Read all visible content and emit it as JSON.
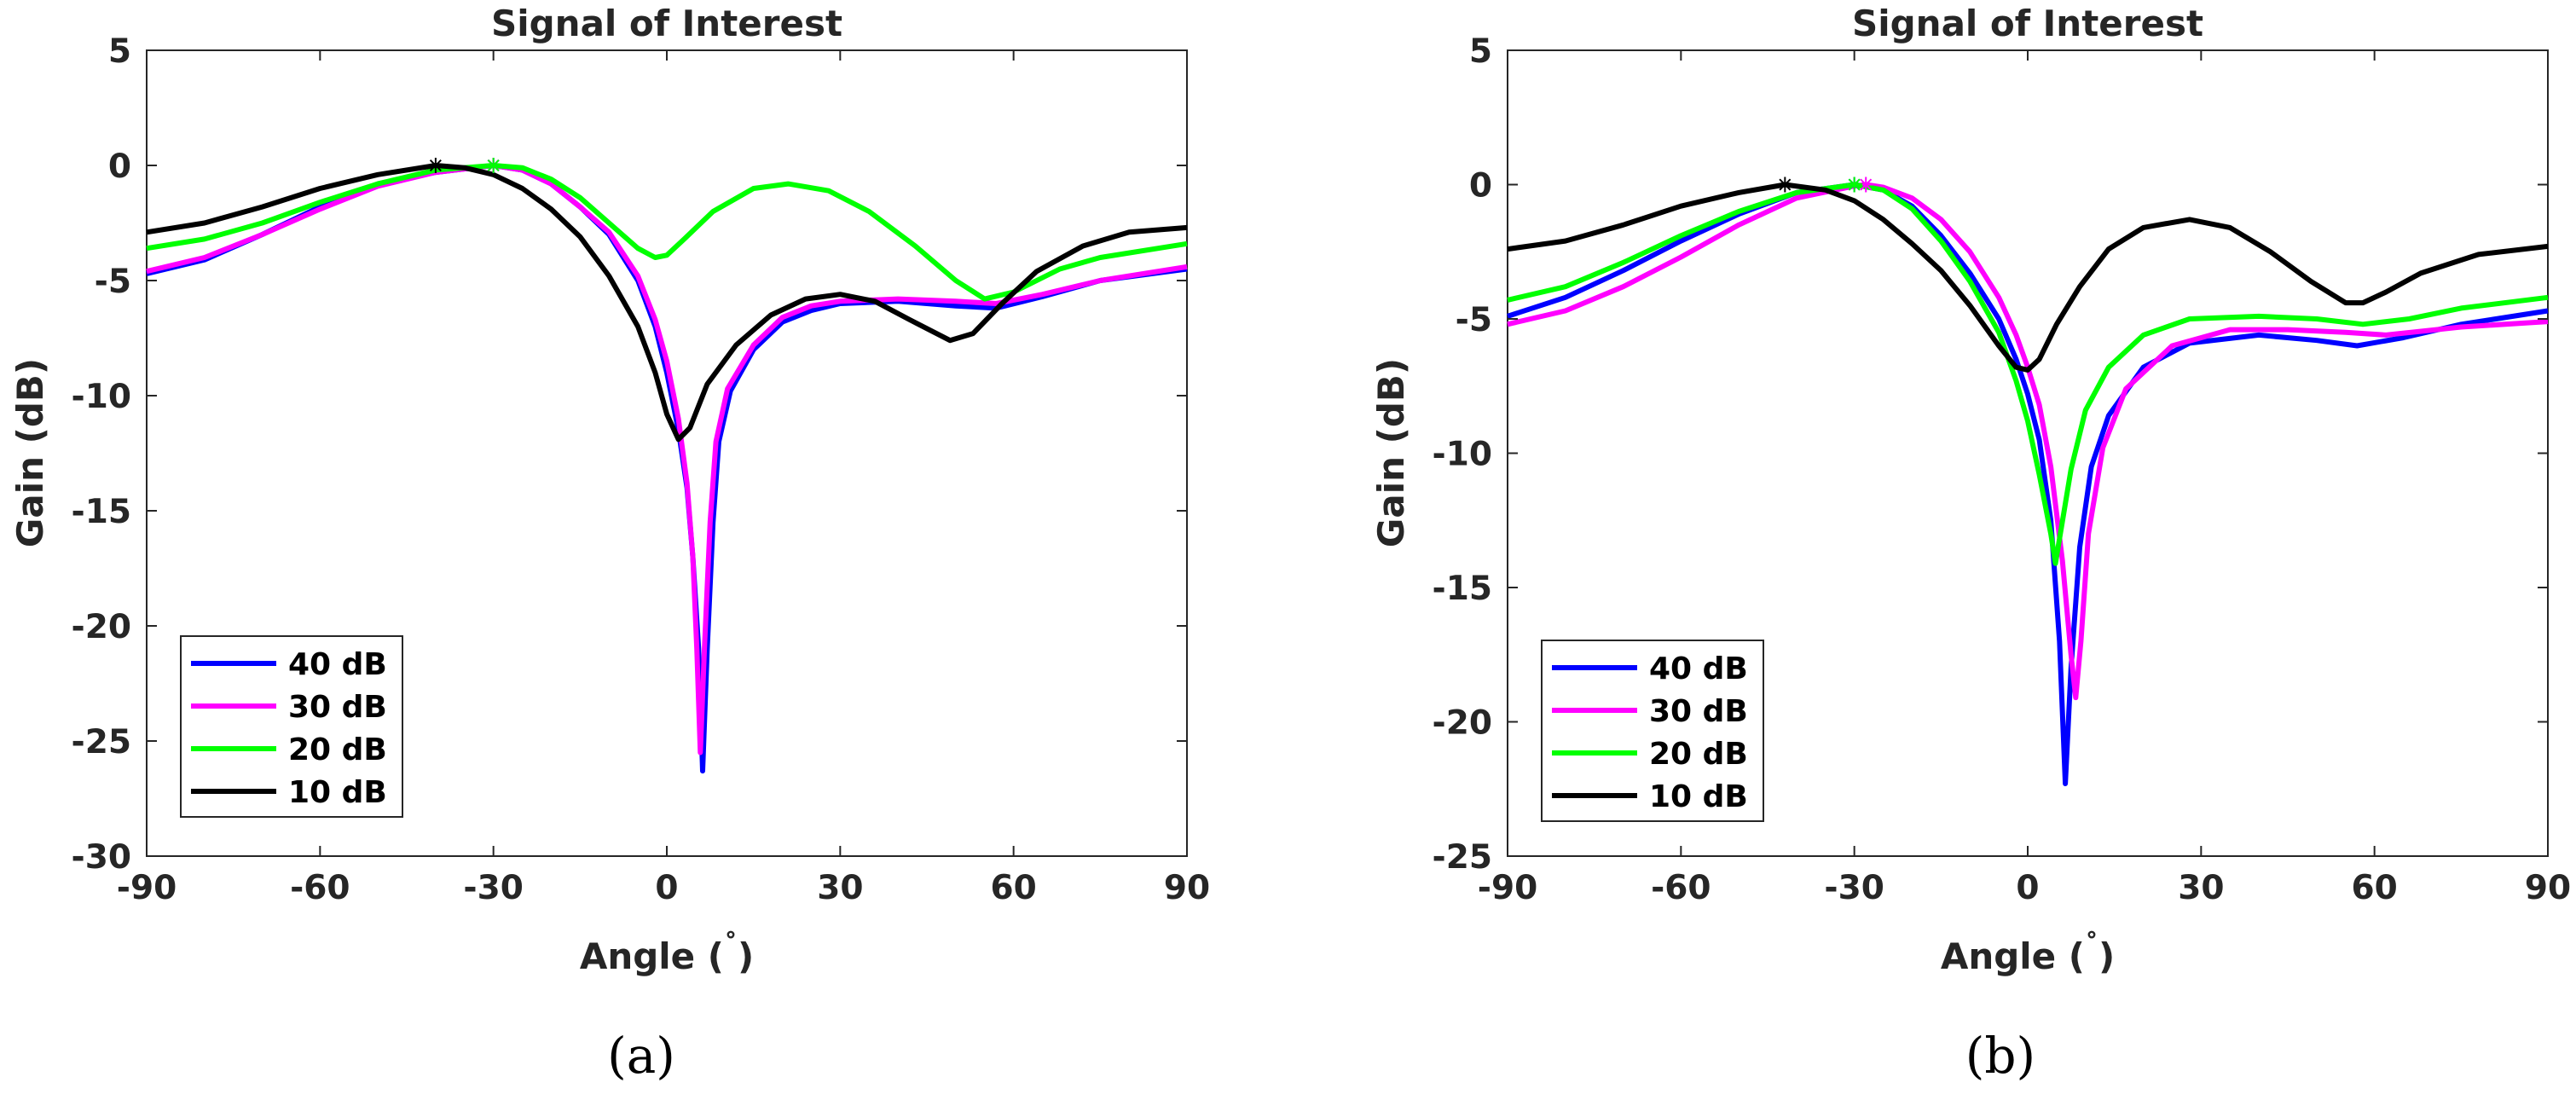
{
  "chart_data": [
    {
      "type": "line",
      "panel_label": "(a)",
      "title": "Signal of Interest",
      "xlabel_prefix": "Angle (",
      "xlabel_degree": "˚",
      "xlabel_suffix": ")",
      "ylabel": "Gain (dB)",
      "xlim": [
        -90,
        90
      ],
      "ylim": [
        -30,
        5
      ],
      "xticks": [
        -90,
        -60,
        -30,
        0,
        30,
        60,
        90
      ],
      "yticks": [
        5,
        0,
        -5,
        -10,
        -15,
        -20,
        -25,
        -30
      ],
      "legend_position": "bottom-left",
      "series": [
        {
          "name": "40 dB",
          "color": "#0000ff",
          "marker_x": -30,
          "points": [
            [
              -90,
              -4.7
            ],
            [
              -80,
              -4.1
            ],
            [
              -70,
              -3.0
            ],
            [
              -60,
              -1.8
            ],
            [
              -50,
              -0.8
            ],
            [
              -40,
              -0.3
            ],
            [
              -30,
              0
            ],
            [
              -25,
              -0.2
            ],
            [
              -20,
              -0.8
            ],
            [
              -15,
              -1.8
            ],
            [
              -10,
              -3.0
            ],
            [
              -5,
              -5.0
            ],
            [
              -2,
              -7.0
            ],
            [
              0,
              -9.0
            ],
            [
              2,
              -11.5
            ],
            [
              3.5,
              -14
            ],
            [
              4.5,
              -17
            ],
            [
              5.5,
              -21
            ],
            [
              6.2,
              -26.3
            ],
            [
              7,
              -21
            ],
            [
              8,
              -15.5
            ],
            [
              9,
              -12
            ],
            [
              11,
              -9.8
            ],
            [
              15,
              -8
            ],
            [
              20,
              -6.8
            ],
            [
              25,
              -6.3
            ],
            [
              30,
              -6.0
            ],
            [
              40,
              -5.9
            ],
            [
              50,
              -6.1
            ],
            [
              57,
              -6.2
            ],
            [
              65,
              -5.7
            ],
            [
              75,
              -5.0
            ],
            [
              90,
              -4.5
            ]
          ]
        },
        {
          "name": "30 dB",
          "color": "#ff00ff",
          "marker_x": -30,
          "points": [
            [
              -90,
              -4.6
            ],
            [
              -80,
              -4.0
            ],
            [
              -70,
              -3.0
            ],
            [
              -60,
              -1.9
            ],
            [
              -50,
              -0.9
            ],
            [
              -40,
              -0.3
            ],
            [
              -30,
              0
            ],
            [
              -25,
              -0.2
            ],
            [
              -20,
              -0.8
            ],
            [
              -15,
              -1.8
            ],
            [
              -10,
              -2.9
            ],
            [
              -5,
              -4.8
            ],
            [
              -2,
              -6.7
            ],
            [
              0,
              -8.5
            ],
            [
              2,
              -11
            ],
            [
              3.5,
              -13.8
            ],
            [
              4.5,
              -17
            ],
            [
              5.2,
              -21
            ],
            [
              5.8,
              -25.5
            ],
            [
              6.5,
              -21
            ],
            [
              7.5,
              -15.5
            ],
            [
              8.5,
              -12
            ],
            [
              10.5,
              -9.7
            ],
            [
              15,
              -7.8
            ],
            [
              20,
              -6.6
            ],
            [
              25,
              -6.1
            ],
            [
              30,
              -5.9
            ],
            [
              40,
              -5.8
            ],
            [
              50,
              -5.9
            ],
            [
              57,
              -6.0
            ],
            [
              65,
              -5.6
            ],
            [
              75,
              -5.0
            ],
            [
              90,
              -4.4
            ]
          ]
        },
        {
          "name": "20 dB",
          "color": "#00ff00",
          "marker_x": -30,
          "points": [
            [
              -90,
              -3.6
            ],
            [
              -80,
              -3.2
            ],
            [
              -70,
              -2.5
            ],
            [
              -60,
              -1.6
            ],
            [
              -50,
              -0.8
            ],
            [
              -40,
              -0.2
            ],
            [
              -30,
              0
            ],
            [
              -25,
              -0.1
            ],
            [
              -20,
              -0.6
            ],
            [
              -15,
              -1.4
            ],
            [
              -10,
              -2.5
            ],
            [
              -5,
              -3.6
            ],
            [
              -2,
              -4.0
            ],
            [
              0,
              -3.9
            ],
            [
              3,
              -3.2
            ],
            [
              8,
              -2.0
            ],
            [
              15,
              -1.0
            ],
            [
              21,
              -0.8
            ],
            [
              28,
              -1.1
            ],
            [
              35,
              -2.0
            ],
            [
              43,
              -3.5
            ],
            [
              50,
              -5.0
            ],
            [
              55,
              -5.8
            ],
            [
              60,
              -5.5
            ],
            [
              68,
              -4.5
            ],
            [
              75,
              -4.0
            ],
            [
              90,
              -3.4
            ]
          ]
        },
        {
          "name": "10 dB",
          "color": "#000000",
          "marker_x": -40,
          "points": [
            [
              -90,
              -2.9
            ],
            [
              -80,
              -2.5
            ],
            [
              -70,
              -1.8
            ],
            [
              -60,
              -1.0
            ],
            [
              -50,
              -0.4
            ],
            [
              -40,
              0
            ],
            [
              -35,
              -0.1
            ],
            [
              -30,
              -0.4
            ],
            [
              -25,
              -1.0
            ],
            [
              -20,
              -1.9
            ],
            [
              -15,
              -3.1
            ],
            [
              -10,
              -4.8
            ],
            [
              -5,
              -7.0
            ],
            [
              -2,
              -9.0
            ],
            [
              0,
              -10.8
            ],
            [
              2,
              -11.9
            ],
            [
              4,
              -11.4
            ],
            [
              7,
              -9.5
            ],
            [
              12,
              -7.8
            ],
            [
              18,
              -6.5
            ],
            [
              24,
              -5.8
            ],
            [
              30,
              -5.6
            ],
            [
              36,
              -5.9
            ],
            [
              42,
              -6.7
            ],
            [
              49,
              -7.6
            ],
            [
              53,
              -7.3
            ],
            [
              58,
              -6.0
            ],
            [
              64,
              -4.6
            ],
            [
              72,
              -3.5
            ],
            [
              80,
              -2.9
            ],
            [
              90,
              -2.7
            ]
          ]
        }
      ]
    },
    {
      "type": "line",
      "panel_label": "(b)",
      "title": "Signal of Interest",
      "xlabel_prefix": "Angle (",
      "xlabel_degree": "˚",
      "xlabel_suffix": ")",
      "ylabel": "Gain (dB)",
      "xlim": [
        -90,
        90
      ],
      "ylim": [
        -25,
        5
      ],
      "xticks": [
        -90,
        -60,
        -30,
        0,
        30,
        60,
        90
      ],
      "yticks": [
        5,
        0,
        -5,
        -10,
        -15,
        -20,
        -25
      ],
      "legend_position": "bottom-left",
      "series": [
        {
          "name": "40 dB",
          "color": "#0000ff",
          "marker_x": -30,
          "points": [
            [
              -90,
              -4.9
            ],
            [
              -80,
              -4.2
            ],
            [
              -70,
              -3.2
            ],
            [
              -60,
              -2.1
            ],
            [
              -50,
              -1.1
            ],
            [
              -40,
              -0.3
            ],
            [
              -30,
              0
            ],
            [
              -25,
              -0.2
            ],
            [
              -20,
              -0.8
            ],
            [
              -15,
              -1.9
            ],
            [
              -10,
              -3.3
            ],
            [
              -5,
              -5.0
            ],
            [
              -2,
              -6.5
            ],
            [
              0,
              -7.8
            ],
            [
              2,
              -9.5
            ],
            [
              4,
              -12.5
            ],
            [
              5.5,
              -17
            ],
            [
              6.5,
              -22.3
            ],
            [
              7.5,
              -18
            ],
            [
              9,
              -13.5
            ],
            [
              11,
              -10.5
            ],
            [
              14,
              -8.6
            ],
            [
              20,
              -6.8
            ],
            [
              28,
              -5.9
            ],
            [
              40,
              -5.6
            ],
            [
              50,
              -5.8
            ],
            [
              57,
              -6.0
            ],
            [
              65,
              -5.7
            ],
            [
              75,
              -5.2
            ],
            [
              90,
              -4.7
            ]
          ]
        },
        {
          "name": "30 dB",
          "color": "#ff00ff",
          "marker_x": -28,
          "points": [
            [
              -90,
              -5.2
            ],
            [
              -80,
              -4.7
            ],
            [
              -70,
              -3.8
            ],
            [
              -60,
              -2.7
            ],
            [
              -50,
              -1.5
            ],
            [
              -40,
              -0.5
            ],
            [
              -30,
              -0.05
            ],
            [
              -28,
              0
            ],
            [
              -25,
              -0.1
            ],
            [
              -20,
              -0.5
            ],
            [
              -15,
              -1.3
            ],
            [
              -10,
              -2.5
            ],
            [
              -5,
              -4.2
            ],
            [
              -2,
              -5.6
            ],
            [
              0,
              -6.8
            ],
            [
              2,
              -8.2
            ],
            [
              4,
              -10.5
            ],
            [
              6,
              -14
            ],
            [
              7.5,
              -17.5
            ],
            [
              8.3,
              -19.1
            ],
            [
              9.2,
              -17
            ],
            [
              10.5,
              -13
            ],
            [
              13,
              -9.8
            ],
            [
              17,
              -7.6
            ],
            [
              25,
              -6.0
            ],
            [
              35,
              -5.4
            ],
            [
              45,
              -5.4
            ],
            [
              55,
              -5.5
            ],
            [
              62,
              -5.6
            ],
            [
              75,
              -5.3
            ],
            [
              90,
              -5.1
            ]
          ]
        },
        {
          "name": "20 dB",
          "color": "#00ff00",
          "marker_x": -30,
          "points": [
            [
              -90,
              -4.3
            ],
            [
              -80,
              -3.8
            ],
            [
              -70,
              -2.9
            ],
            [
              -60,
              -1.9
            ],
            [
              -50,
              -1.0
            ],
            [
              -40,
              -0.3
            ],
            [
              -30,
              0
            ],
            [
              -25,
              -0.2
            ],
            [
              -20,
              -0.9
            ],
            [
              -15,
              -2.1
            ],
            [
              -10,
              -3.6
            ],
            [
              -5,
              -5.5
            ],
            [
              -2,
              -7.3
            ],
            [
              0,
              -8.8
            ],
            [
              2,
              -10.8
            ],
            [
              4,
              -13
            ],
            [
              4.8,
              -14.1
            ],
            [
              5.8,
              -12.8
            ],
            [
              7.5,
              -10.6
            ],
            [
              10,
              -8.4
            ],
            [
              14,
              -6.8
            ],
            [
              20,
              -5.6
            ],
            [
              28,
              -5.0
            ],
            [
              40,
              -4.9
            ],
            [
              50,
              -5.0
            ],
            [
              58,
              -5.2
            ],
            [
              66,
              -5.0
            ],
            [
              75,
              -4.6
            ],
            [
              90,
              -4.2
            ]
          ]
        },
        {
          "name": "10 dB",
          "color": "#000000",
          "marker_x": -42,
          "points": [
            [
              -90,
              -2.4
            ],
            [
              -80,
              -2.1
            ],
            [
              -70,
              -1.5
            ],
            [
              -60,
              -0.8
            ],
            [
              -50,
              -0.3
            ],
            [
              -42,
              0
            ],
            [
              -35,
              -0.2
            ],
            [
              -30,
              -0.6
            ],
            [
              -25,
              -1.3
            ],
            [
              -20,
              -2.2
            ],
            [
              -15,
              -3.2
            ],
            [
              -10,
              -4.5
            ],
            [
              -5,
              -6.0
            ],
            [
              -2,
              -6.8
            ],
            [
              0,
              -6.9
            ],
            [
              2,
              -6.5
            ],
            [
              5,
              -5.2
            ],
            [
              9,
              -3.8
            ],
            [
              14,
              -2.4
            ],
            [
              20,
              -1.6
            ],
            [
              28,
              -1.3
            ],
            [
              35,
              -1.6
            ],
            [
              42,
              -2.5
            ],
            [
              49,
              -3.6
            ],
            [
              55,
              -4.4
            ],
            [
              58,
              -4.4
            ],
            [
              62,
              -4.0
            ],
            [
              68,
              -3.3
            ],
            [
              78,
              -2.6
            ],
            [
              90,
              -2.3
            ]
          ]
        }
      ]
    }
  ]
}
